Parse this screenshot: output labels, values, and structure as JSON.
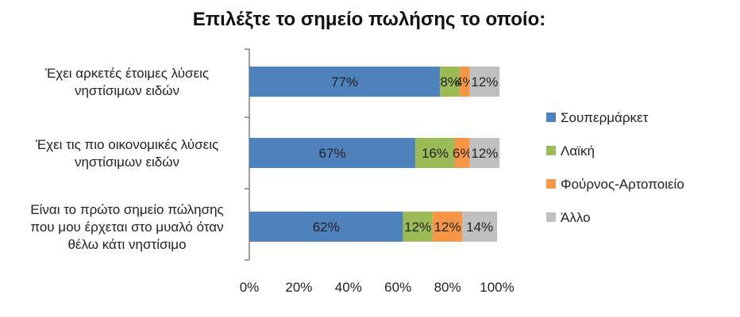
{
  "chart_data": {
    "type": "bar",
    "orientation": "horizontal",
    "stacked": "percent",
    "title": "Επιλέξτε το σημείο πωλήσης το οποίο:",
    "categories": [
      [
        "Έχει αρκετές έτοιμες λύσεις",
        "νηστίσιμων ειδών"
      ],
      [
        "Έχει τις πιο οικονομικές λύσεις",
        "νηστίσιμων ειδών"
      ],
      [
        "Είναι το πρώτο σημείο πώλησης",
        "που μου έρχεται στο μυαλό όταν",
        "θέλω κάτι νηστίσιμο"
      ]
    ],
    "series": [
      {
        "name": "Σουπερμάρκετ",
        "color": "#4f81bd",
        "values": [
          77,
          67,
          62
        ],
        "labels": [
          "77%",
          "67%",
          "62%"
        ]
      },
      {
        "name": "Λαϊκή",
        "color": "#9bbb59",
        "values": [
          8,
          16,
          12
        ],
        "labels": [
          "8%",
          "16%",
          "12%"
        ]
      },
      {
        "name": "Φούρνος-Αρτοποιείο",
        "color": "#f79646",
        "values": [
          4,
          6,
          12
        ],
        "labels": [
          "4%",
          "6%",
          "12%"
        ]
      },
      {
        "name": "Άλλο",
        "color": "#c0c0c0",
        "values": [
          12,
          12,
          14
        ],
        "labels": [
          "12%",
          "12%",
          "14%"
        ]
      }
    ],
    "xlim": [
      0,
      100
    ],
    "x_ticks": [
      "0%",
      "20%",
      "40%",
      "60%",
      "80%",
      "100%"
    ],
    "grid": false,
    "legend_position": "right"
  }
}
